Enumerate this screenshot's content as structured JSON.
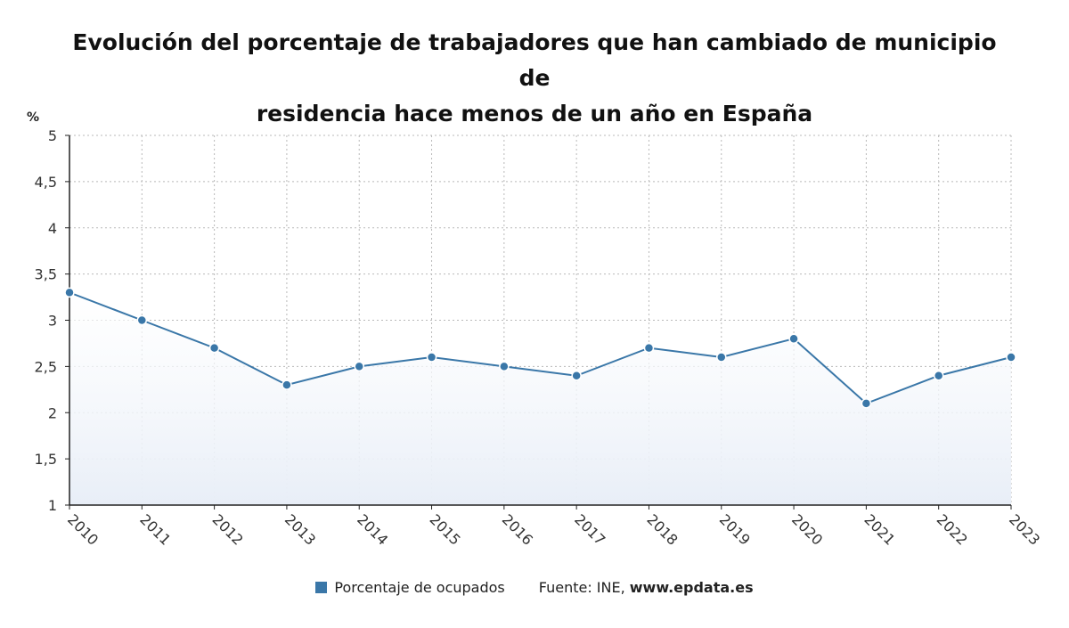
{
  "chart_data": {
    "type": "area",
    "title_lines": [
      "Evolución del porcentaje de trabajadores que han cambiado de municipio de",
      "residencia hace menos de un año en España"
    ],
    "ylabel": "%",
    "xlabel": "",
    "ylim": [
      1,
      5
    ],
    "yticks": [
      "1",
      "1,5",
      "2",
      "2,5",
      "3",
      "3,5",
      "4",
      "4,5",
      "5"
    ],
    "ytick_values": [
      1,
      1.5,
      2,
      2.5,
      3,
      3.5,
      4,
      4.5,
      5
    ],
    "categories": [
      "2010",
      "2011",
      "2012",
      "2013",
      "2014",
      "2015",
      "2016",
      "2017",
      "2018",
      "2019",
      "2020",
      "2021",
      "2022",
      "2023"
    ],
    "series": [
      {
        "name": "Porcentaje de ocupados",
        "values": [
          3.3,
          3.0,
          2.7,
          2.3,
          2.5,
          2.6,
          2.5,
          2.4,
          2.7,
          2.6,
          2.8,
          2.1,
          2.4,
          2.6
        ],
        "color": "#3a77a8"
      }
    ],
    "grid": true,
    "legend_position": "bottom"
  },
  "legend": {
    "series_label": "Porcentaje de ocupados",
    "source_prefix": "Fuente: INE, ",
    "source_site": "www.epdata.es"
  }
}
